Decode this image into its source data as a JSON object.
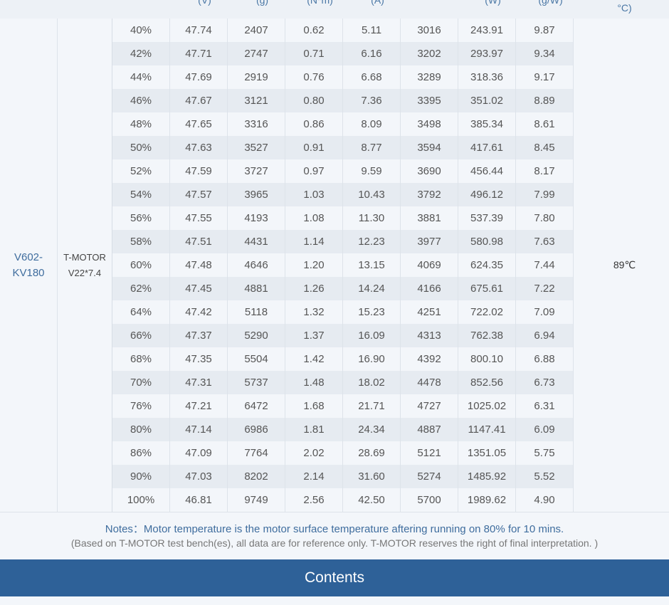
{
  "header": {
    "units": [
      "(V)",
      "(g)",
      "(N*m)",
      "(A)",
      "",
      "(W)",
      "(g/W)"
    ],
    "temp_unit": "°C)"
  },
  "propeller": {
    "line1": "V602-",
    "line2": "KV180"
  },
  "motor": {
    "line1": "T-MOTOR",
    "line2": "V22*7.4"
  },
  "temperature": "89℃",
  "rows": [
    [
      "40%",
      "47.74",
      "2407",
      "0.62",
      "5.11",
      "3016",
      "243.91",
      "9.87"
    ],
    [
      "42%",
      "47.71",
      "2747",
      "0.71",
      "6.16",
      "3202",
      "293.97",
      "9.34"
    ],
    [
      "44%",
      "47.69",
      "2919",
      "0.76",
      "6.68",
      "3289",
      "318.36",
      "9.17"
    ],
    [
      "46%",
      "47.67",
      "3121",
      "0.80",
      "7.36",
      "3395",
      "351.02",
      "8.89"
    ],
    [
      "48%",
      "47.65",
      "3316",
      "0.86",
      "8.09",
      "3498",
      "385.34",
      "8.61"
    ],
    [
      "50%",
      "47.63",
      "3527",
      "0.91",
      "8.77",
      "3594",
      "417.61",
      "8.45"
    ],
    [
      "52%",
      "47.59",
      "3727",
      "0.97",
      "9.59",
      "3690",
      "456.44",
      "8.17"
    ],
    [
      "54%",
      "47.57",
      "3965",
      "1.03",
      "10.43",
      "3792",
      "496.12",
      "7.99"
    ],
    [
      "56%",
      "47.55",
      "4193",
      "1.08",
      "11.30",
      "3881",
      "537.39",
      "7.80"
    ],
    [
      "58%",
      "47.51",
      "4431",
      "1.14",
      "12.23",
      "3977",
      "580.98",
      "7.63"
    ],
    [
      "60%",
      "47.48",
      "4646",
      "1.20",
      "13.15",
      "4069",
      "624.35",
      "7.44"
    ],
    [
      "62%",
      "47.45",
      "4881",
      "1.26",
      "14.24",
      "4166",
      "675.61",
      "7.22"
    ],
    [
      "64%",
      "47.42",
      "5118",
      "1.32",
      "15.23",
      "4251",
      "722.02",
      "7.09"
    ],
    [
      "66%",
      "47.37",
      "5290",
      "1.37",
      "16.09",
      "4313",
      "762.38",
      "6.94"
    ],
    [
      "68%",
      "47.35",
      "5504",
      "1.42",
      "16.90",
      "4392",
      "800.10",
      "6.88"
    ],
    [
      "70%",
      "47.31",
      "5737",
      "1.48",
      "18.02",
      "4478",
      "852.56",
      "6.73"
    ],
    [
      "76%",
      "47.21",
      "6472",
      "1.68",
      "21.71",
      "4727",
      "1025.02",
      "6.31"
    ],
    [
      "80%",
      "47.14",
      "6986",
      "1.81",
      "24.34",
      "4887",
      "1147.41",
      "6.09"
    ],
    [
      "86%",
      "47.09",
      "7764",
      "2.02",
      "28.69",
      "5121",
      "1351.05",
      "5.75"
    ],
    [
      "90%",
      "47.03",
      "8202",
      "2.14",
      "31.60",
      "5274",
      "1485.92",
      "5.52"
    ],
    [
      "100%",
      "46.81",
      "9749",
      "2.56",
      "42.50",
      "5700",
      "1989.62",
      "4.90"
    ]
  ],
  "notes": {
    "line1": "Notes：Motor temperature is the motor surface temperature aftering running on 80% for 10 mins.",
    "line2": "(Based on T-MOTOR test bench(es), all data are for reference only. T-MOTOR reserves the right of final interpretation. )"
  },
  "contents_label": "Contents"
}
